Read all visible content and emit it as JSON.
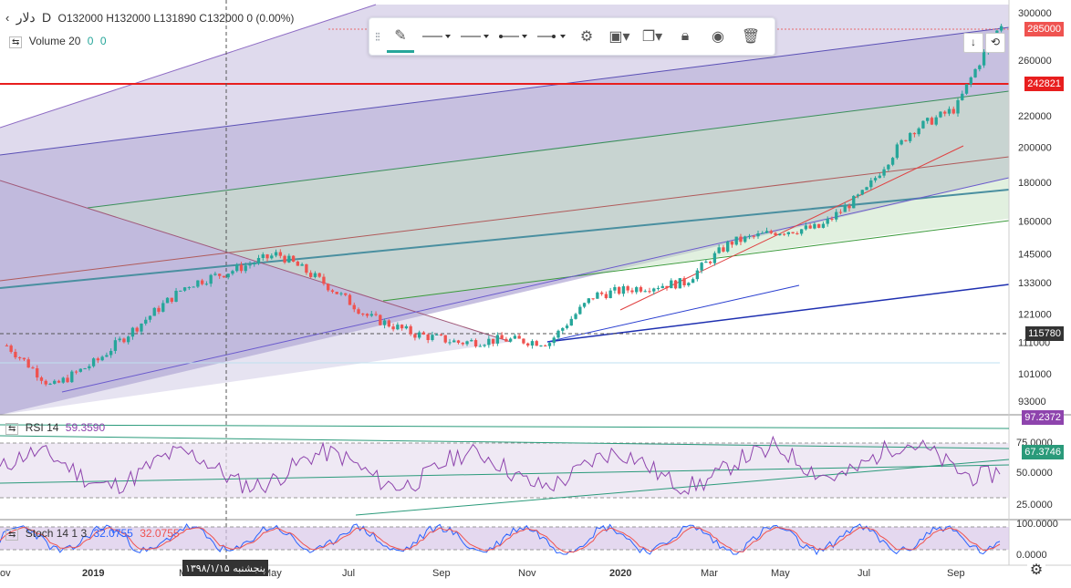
{
  "header": {
    "symbol": "دلار",
    "interval": "D",
    "ohlc": "O132000 H132000 L131890 C132000 0 (0.00%)",
    "volume_label": "Volume 20",
    "volume_v1": "0",
    "volume_v2": "0"
  },
  "toolbar": {
    "items": [
      "pencil-icon",
      "line-style-icon",
      "line-style-icon",
      "line-end-icon",
      "line-end-icon",
      "gear-icon",
      "layers-icon",
      "clone-icon",
      "lock-icon",
      "eye-icon",
      "trash-icon"
    ]
  },
  "colors": {
    "up": "#26a69a",
    "down": "#ef5350",
    "horizontal_level": "#e81e1e",
    "rsi_line": "#8e44ad",
    "stoch_k": "#2962ff",
    "stoch_d": "#ef5350",
    "channel_fill": "#b7aed6"
  },
  "price_axis": {
    "ticks": [
      "300000",
      "260000",
      "220000",
      "200000",
      "180000",
      "160000",
      "145000",
      "133000",
      "121000",
      "111000",
      "101000",
      "93000"
    ],
    "current_price": "285000",
    "hline_price": "242821",
    "crosshair_price": "115780"
  },
  "rsi": {
    "label": "RSI 14",
    "value": "59.3590",
    "ticks": [
      "75.0000",
      "50.0000",
      "25.0000"
    ],
    "top_badge": "97.2372",
    "value_badge": "67.3746"
  },
  "stoch": {
    "label": "Stoch 14 1 3",
    "k": "32.0755",
    "d": "32.0755",
    "ticks": [
      "100.0000",
      "0.0000"
    ]
  },
  "time_axis": {
    "labels": [
      "ov",
      "2019",
      "M",
      "May",
      "Jul",
      "Sep",
      "Nov",
      "2020",
      "Mar",
      "May",
      "Jul",
      "Sep"
    ],
    "crosshair_date": "پنجشنبه ۱۳۹۸/۱/۱۵"
  },
  "chart_data": [
    {
      "type": "candlestick",
      "ylim": [
        90000,
        305000
      ],
      "y_scale": "log",
      "x": [
        "2018-11",
        "2018-12",
        "2019-01",
        "2019-02",
        "2019-03",
        "2019-04",
        "2019-05",
        "2019-06",
        "2019-07",
        "2019-08",
        "2019-09",
        "2019-10",
        "2019-11",
        "2019-12",
        "2020-01",
        "2020-02",
        "2020-03",
        "2020-04",
        "2020-05",
        "2020-06",
        "2020-07",
        "2020-08",
        "2020-09"
      ],
      "close": [
        110000,
        97000,
        105000,
        118000,
        132000,
        138000,
        145000,
        133000,
        120000,
        114000,
        111000,
        112000,
        111000,
        128000,
        131000,
        133000,
        150000,
        155000,
        157000,
        175000,
        210000,
        225000,
        290000
      ],
      "annotations": [
        "horizontal line 242821",
        "crosshair 115780"
      ]
    },
    {
      "type": "line",
      "name": "RSI 14",
      "ylim": [
        0,
        100
      ],
      "last": 59.359
    },
    {
      "type": "line",
      "name": "Stoch 14 1 3",
      "ylim": [
        0,
        100
      ],
      "last": 32.0755
    }
  ]
}
